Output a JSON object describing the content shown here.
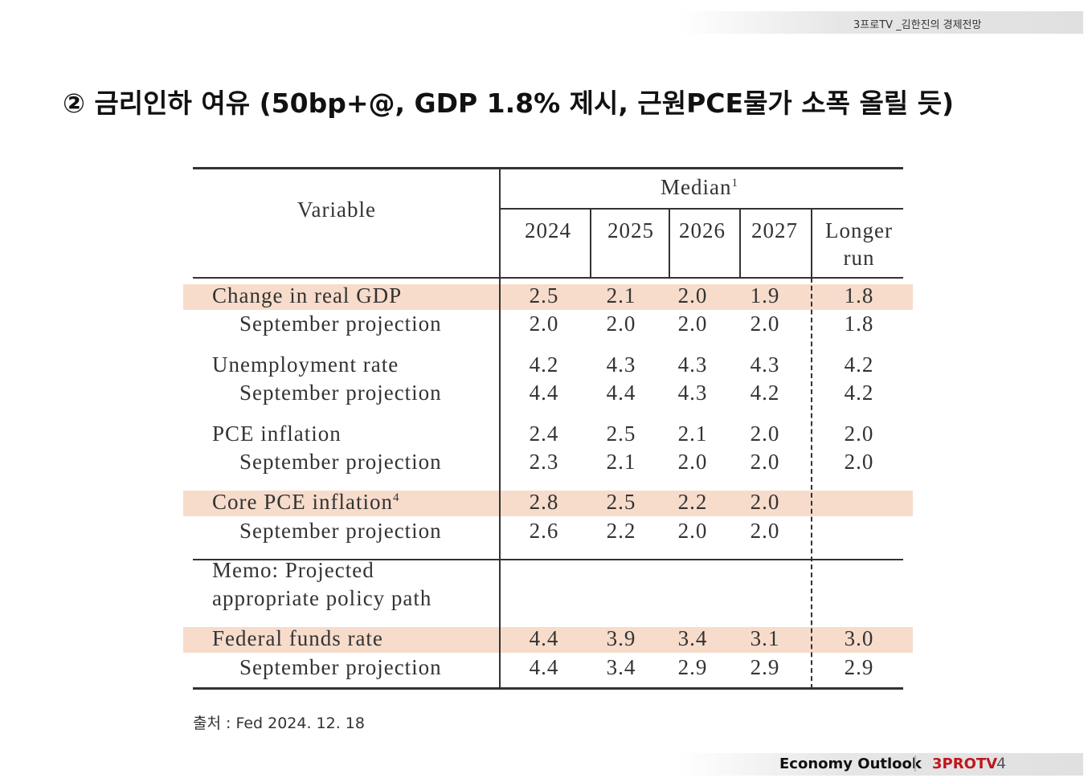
{
  "header": {
    "channel": "3프로TV _김한진의 경제전망"
  },
  "title": "② 금리인하 여유 (50bp+@, GDP 1.8% 제시, 근원PCE물가 소폭 올릴 듯)",
  "table": {
    "variable_header": "Variable",
    "median_header": "Median",
    "median_note": "1",
    "columns": [
      "2024",
      "2025",
      "2026",
      "2027",
      "Longer run"
    ],
    "rows": [
      {
        "label": "Change in real GDP",
        "values": [
          "2.5",
          "2.1",
          "2.0",
          "1.9",
          "1.8"
        ],
        "highlight": true
      },
      {
        "label": "September projection",
        "values": [
          "2.0",
          "2.0",
          "2.0",
          "2.0",
          "1.8"
        ],
        "indent": true
      },
      {
        "label": "Unemployment rate",
        "values": [
          "4.2",
          "4.3",
          "4.3",
          "4.3",
          "4.2"
        ]
      },
      {
        "label": "September projection",
        "values": [
          "4.4",
          "4.4",
          "4.3",
          "4.2",
          "4.2"
        ],
        "indent": true
      },
      {
        "label": "PCE inflation",
        "values": [
          "2.4",
          "2.5",
          "2.1",
          "2.0",
          "2.0"
        ]
      },
      {
        "label": "September projection",
        "values": [
          "2.3",
          "2.1",
          "2.0",
          "2.0",
          "2.0"
        ],
        "indent": true
      },
      {
        "label": "Core PCE inflation",
        "note": "4",
        "values": [
          "2.8",
          "2.5",
          "2.2",
          "2.0"
        ],
        "highlight": true
      },
      {
        "label": "September projection",
        "values": [
          "2.6",
          "2.2",
          "2.0",
          "2.0"
        ],
        "indent": true
      },
      {
        "label": "Federal funds rate",
        "values": [
          "4.4",
          "3.9",
          "3.4",
          "3.1",
          "3.0"
        ],
        "highlight": true
      },
      {
        "label": "September projection",
        "values": [
          "4.4",
          "3.4",
          "2.9",
          "2.9",
          "2.9"
        ],
        "indent": true
      }
    ],
    "memo": [
      "Memo: Projected",
      "appropriate policy path"
    ]
  },
  "source": "출처 : Fed 2024. 12. 18",
  "footer": {
    "brand": "Economy Outlook",
    "channel": "3PROTV",
    "page": "4"
  }
}
